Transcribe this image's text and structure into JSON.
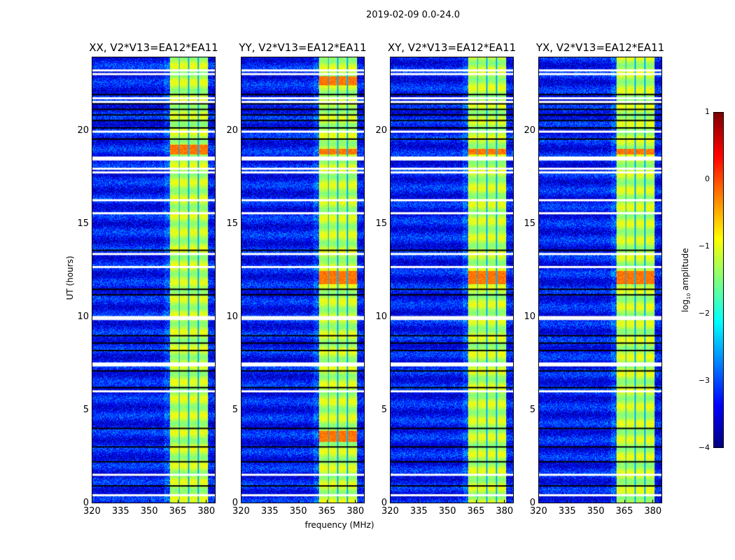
{
  "figure_title": "2019-02-09 0.0-24.0",
  "chart_data": {
    "type": "heatmap",
    "title": "2019-02-09 0.0-24.0",
    "xlabel": "frequency (MHz)",
    "ylabel": "UT (hours)",
    "xlim": [
      320,
      385
    ],
    "ylim": [
      0,
      24
    ],
    "xticks": [
      320,
      335,
      350,
      365,
      380
    ],
    "yticks": [
      0,
      5,
      10,
      15,
      20
    ],
    "panels": [
      {
        "title": "XX, V2*V13=EA12*EA11",
        "high_hours": [
          [
            18.8,
            19.3
          ]
        ]
      },
      {
        "title": "YY, V2*V13=EA12*EA11",
        "high_hours": [
          [
            11.8,
            12.5
          ],
          [
            3.3,
            3.9
          ],
          [
            22.5,
            23.0
          ],
          [
            18.8,
            19.1
          ]
        ]
      },
      {
        "title": "XY, V2*V13=EA12*EA11",
        "high_hours": [
          [
            11.8,
            12.5
          ],
          [
            18.8,
            19.1
          ]
        ]
      },
      {
        "title": "YX, V2*V13=EA12*EA11",
        "high_hours": [
          [
            11.8,
            12.5
          ],
          [
            18.8,
            19.1
          ]
        ]
      }
    ],
    "signal_band_mhz": [
      361,
      381
    ],
    "band_channel_gaps_mhz": [
      365.8,
      370.9,
      376.0
    ],
    "background_log10_amplitude": -3.3,
    "band_log10_amplitude": -1.2,
    "flagged_hours_white": [
      0.4,
      1.5,
      6.0,
      7.4,
      7.5,
      9.9,
      10.0,
      12.7,
      13.4,
      15.6,
      16.3,
      17.8,
      18.0,
      18.5,
      18.6,
      20.0,
      21.6,
      21.8,
      23.1,
      23.3
    ],
    "flagged_hours_black": [
      0.9,
      2.2,
      3.0,
      4.0,
      6.2,
      7.1,
      8.2,
      8.6,
      9.0,
      11.2,
      11.5,
      13.6,
      19.6,
      20.2,
      20.6,
      20.9,
      21.2,
      21.5,
      22.0
    ],
    "colorbar": {
      "label_prefix": "log",
      "label_sub": "10",
      "label_suffix": " amplitude",
      "range": [
        -4,
        1
      ],
      "ticks": [
        1,
        0,
        -1,
        -2,
        -3,
        -4
      ],
      "tick_labels": [
        "1",
        "0",
        "−1",
        "−2",
        "−3",
        "−4"
      ],
      "colormap": "jet"
    }
  }
}
